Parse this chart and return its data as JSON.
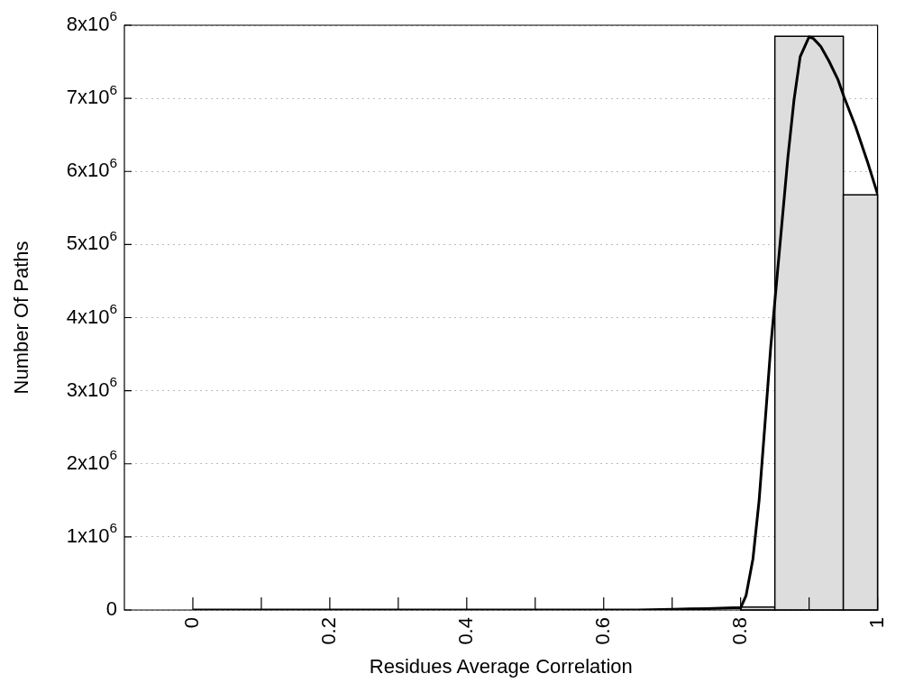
{
  "chart_data": {
    "type": "histogram",
    "xlabel": "Residues Average Correlation",
    "ylabel": "Number Of Paths",
    "bins": [
      0.8,
      0.85,
      0.95,
      1.0
    ],
    "values": [
      40000,
      7850000,
      5680000
    ],
    "color": "#dddddd",
    "series": [
      {
        "type": "line",
        "color": "#000000",
        "x": [
          0,
          0.6,
          0.65,
          0.7,
          0.75,
          0.79,
          0.8,
          0.808,
          0.818,
          0.827,
          0.836,
          0.844,
          0.854,
          0.869,
          0.878,
          0.887,
          0.9,
          0.906,
          0.917,
          0.929,
          0.942,
          0.951,
          0.968,
          0.985,
          1.0
        ],
        "values": [
          0,
          0,
          0,
          10000,
          20000,
          30000,
          30000,
          200000,
          700000,
          1500000,
          2600000,
          3600000,
          4640000,
          6190000,
          6980000,
          7570000,
          7840000,
          7820000,
          7710000,
          7510000,
          7260000,
          7020000,
          6610000,
          6140000,
          5690000
        ]
      }
    ],
    "xlim": [
      -0.1,
      1
    ],
    "xticks": [
      0,
      {
        "value": 0.1,
        "label": null
      },
      0.2,
      {
        "value": 0.3,
        "label": null
      },
      0.4,
      {
        "value": 0.5,
        "label": null
      },
      0.6,
      {
        "value": 0.7,
        "label": null
      },
      0.8,
      {
        "value": 0.9,
        "label": null
      },
      1
    ],
    "ylim": [
      0,
      8000000
    ],
    "yticks": [
      0,
      {
        "value": 1000000,
        "label": "1x10$^{6}$"
      },
      {
        "value": 2000000,
        "label": "2x10$^{6}$"
      },
      {
        "value": 3000000,
        "label": "3x10$^{6}$"
      },
      {
        "value": 4000000,
        "label": "4x10$^{6}$"
      },
      {
        "value": 5000000,
        "label": "5x10$^{6}$"
      },
      {
        "value": 6000000,
        "label": "6x10$^{6}$"
      },
      {
        "value": 7000000,
        "label": "7x10$^{6}$"
      },
      {
        "value": 8000000,
        "label": "8x10$^{6}$"
      }
    ],
    "grid": "y",
    "legend": false,
    "marker": "none",
    "line_style": "solid"
  }
}
